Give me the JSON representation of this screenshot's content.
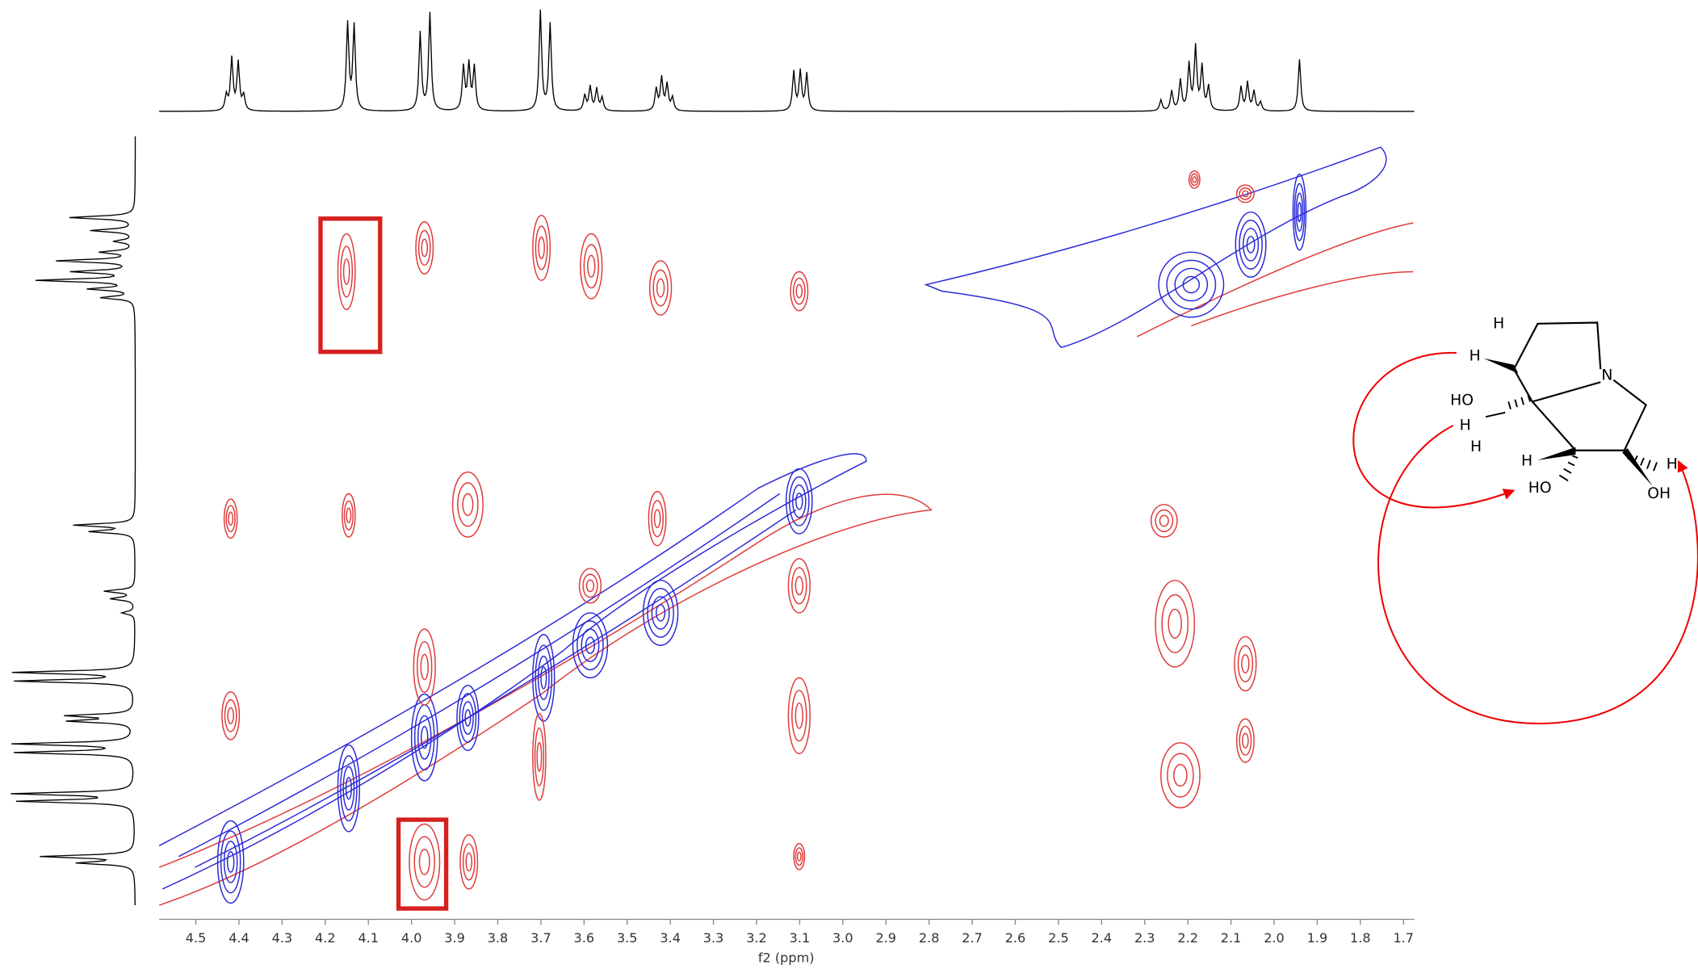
{
  "chart_data": {
    "type": "contour",
    "x_label": "f2 (ppm)",
    "xlim": [
      4.585,
      1.675
    ],
    "xticks": [
      4.5,
      4.4,
      4.3,
      4.2,
      4.1,
      {
        "value": 4,
        "label": "4.0"
      },
      3.9,
      3.8,
      3.7,
      3.6,
      3.5,
      3.4,
      3.3,
      3.2,
      3.1,
      {
        "value": 3,
        "label": "3.0"
      },
      2.9,
      2.8,
      2.7,
      2.6,
      2.5,
      2.4,
      2.3,
      2.2,
      2.1,
      {
        "value": 2,
        "label": "2.0"
      },
      1.9,
      1.8,
      1.7
    ]
  },
  "structure": {
    "labels": [
      "H",
      "H",
      "N",
      "HO",
      "H",
      "H",
      "H",
      "HO",
      "H",
      "OH"
    ]
  }
}
